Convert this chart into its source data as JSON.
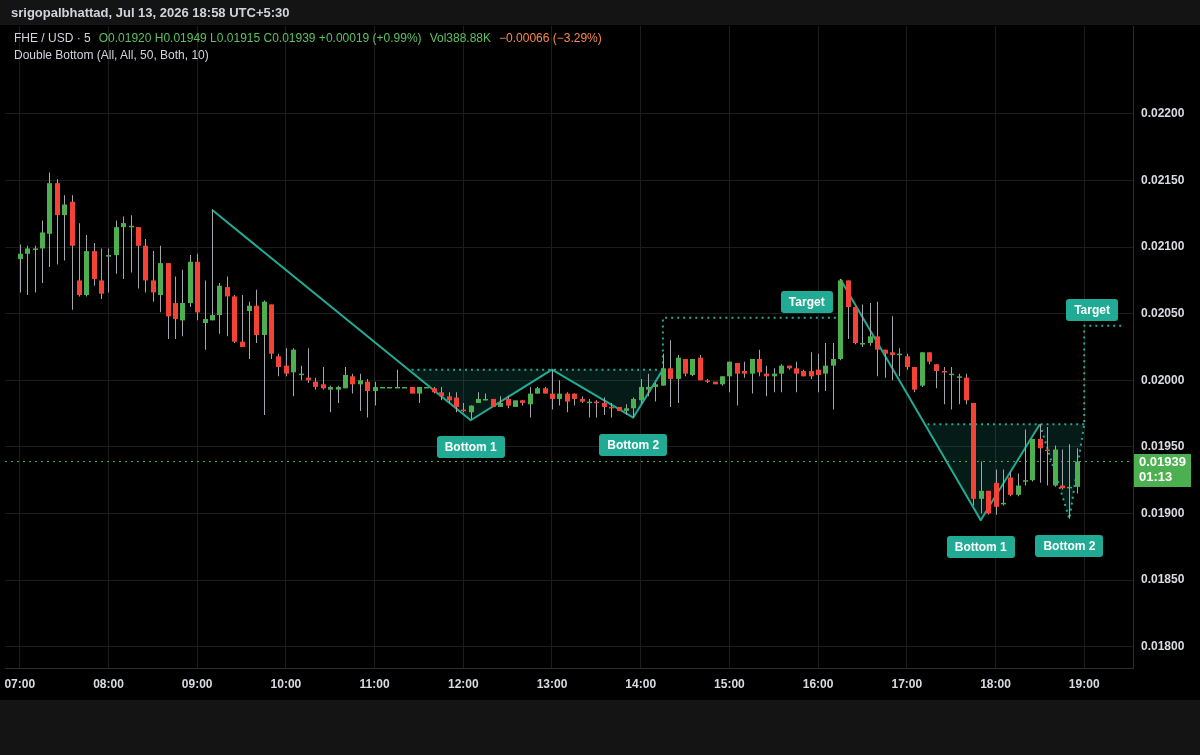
{
  "chart_data": {
    "type": "candlestick",
    "title": "FHE / USD · 5",
    "subtitle": "O0.01920 H0.01949 L0.01915 C0.01939 +0.00019 (+0.99%)",
    "annotations": [
      "Vol388.88K",
      "−0.00066 (−3.29%)",
      "Double Bottom (All, All, 50, Both, 10)",
      "srigopalbhattad, Jul 13, 2026 18:58 UTC+5:30",
      {
        "text": "Bottom 1",
        "x": "2026-07-13T12:05",
        "y": 0.0197
      },
      {
        "text": "Bottom 2",
        "x": "2026-07-13T13:55",
        "y": 0.01972
      },
      {
        "text": "Target",
        "x": "2026-07-13T16:12",
        "y": 0.02047
      },
      {
        "text": "Bottom 1",
        "x": "2026-07-13T17:50",
        "y": 0.01895
      },
      {
        "text": "Bottom 2",
        "x": "2026-07-13T18:50",
        "y": 0.01896
      },
      {
        "text": "Target",
        "x": "2026-07-13T19:25",
        "y": 0.02041
      }
    ],
    "x": [
      "2026-07-13T07:00",
      "2026-07-13T07:05",
      "2026-07-13T07:10",
      "2026-07-13T07:15",
      "2026-07-13T07:20",
      "2026-07-13T07:25",
      "2026-07-13T07:30",
      "2026-07-13T07:35",
      "2026-07-13T07:40",
      "2026-07-13T07:45",
      "2026-07-13T07:50",
      "2026-07-13T07:55",
      "2026-07-13T08:00",
      "2026-07-13T08:05",
      "2026-07-13T08:10",
      "2026-07-13T08:15",
      "2026-07-13T08:20",
      "2026-07-13T08:25",
      "2026-07-13T08:30",
      "2026-07-13T08:35",
      "2026-07-13T08:40",
      "2026-07-13T08:45",
      "2026-07-13T08:50",
      "2026-07-13T08:55",
      "2026-07-13T09:00",
      "2026-07-13T09:05",
      "2026-07-13T09:10",
      "2026-07-13T09:15",
      "2026-07-13T09:20",
      "2026-07-13T09:25",
      "2026-07-13T09:30",
      "2026-07-13T09:35",
      "2026-07-13T09:40",
      "2026-07-13T09:45",
      "2026-07-13T09:50",
      "2026-07-13T09:55",
      "2026-07-13T10:00",
      "2026-07-13T10:05",
      "2026-07-13T10:10",
      "2026-07-13T10:15",
      "2026-07-13T10:20",
      "2026-07-13T10:25",
      "2026-07-13T10:30",
      "2026-07-13T10:35",
      "2026-07-13T10:40",
      "2026-07-13T10:45",
      "2026-07-13T10:50",
      "2026-07-13T10:55",
      "2026-07-13T11:00",
      "2026-07-13T11:05",
      "2026-07-13T11:10",
      "2026-07-13T11:15",
      "2026-07-13T11:20",
      "2026-07-13T11:25",
      "2026-07-13T11:30",
      "2026-07-13T11:35",
      "2026-07-13T11:40",
      "2026-07-13T11:45",
      "2026-07-13T11:50",
      "2026-07-13T11:55",
      "2026-07-13T12:00",
      "2026-07-13T12:05",
      "2026-07-13T12:10",
      "2026-07-13T12:15",
      "2026-07-13T12:20",
      "2026-07-13T12:25",
      "2026-07-13T12:30",
      "2026-07-13T12:35",
      "2026-07-13T12:40",
      "2026-07-13T12:45",
      "2026-07-13T12:50",
      "2026-07-13T12:55",
      "2026-07-13T13:00",
      "2026-07-13T13:05",
      "2026-07-13T13:10",
      "2026-07-13T13:15",
      "2026-07-13T13:20",
      "2026-07-13T13:25",
      "2026-07-13T13:30",
      "2026-07-13T13:35",
      "2026-07-13T13:40",
      "2026-07-13T13:45",
      "2026-07-13T13:50",
      "2026-07-13T13:55",
      "2026-07-13T14:00",
      "2026-07-13T14:05",
      "2026-07-13T14:10",
      "2026-07-13T14:15",
      "2026-07-13T14:20",
      "2026-07-13T14:25",
      "2026-07-13T14:30",
      "2026-07-13T14:35",
      "2026-07-13T14:40",
      "2026-07-13T14:45",
      "2026-07-13T14:50",
      "2026-07-13T14:55",
      "2026-07-13T15:00",
      "2026-07-13T15:05",
      "2026-07-13T15:10",
      "2026-07-13T15:15",
      "2026-07-13T15:20",
      "2026-07-13T15:25",
      "2026-07-13T15:30",
      "2026-07-13T15:35",
      "2026-07-13T15:40",
      "2026-07-13T15:45",
      "2026-07-13T15:50",
      "2026-07-13T15:55",
      "2026-07-13T16:00",
      "2026-07-13T16:05",
      "2026-07-13T16:10",
      "2026-07-13T16:15",
      "2026-07-13T16:20",
      "2026-07-13T16:25",
      "2026-07-13T16:30",
      "2026-07-13T16:35",
      "2026-07-13T16:40",
      "2026-07-13T16:45",
      "2026-07-13T16:50",
      "2026-07-13T16:55",
      "2026-07-13T17:00",
      "2026-07-13T17:05",
      "2026-07-13T17:10",
      "2026-07-13T17:15",
      "2026-07-13T17:20",
      "2026-07-13T17:25",
      "2026-07-13T17:30",
      "2026-07-13T17:35",
      "2026-07-13T17:40",
      "2026-07-13T17:45",
      "2026-07-13T17:50",
      "2026-07-13T17:55",
      "2026-07-13T18:00",
      "2026-07-13T18:05",
      "2026-07-13T18:10",
      "2026-07-13T18:15",
      "2026-07-13T18:20",
      "2026-07-13T18:25",
      "2026-07-13T18:30",
      "2026-07-13T18:35",
      "2026-07-13T18:40",
      "2026-07-13T18:45",
      "2026-07-13T18:50",
      "2026-07-13T18:55"
    ],
    "ohlc": [
      [
        0.02091,
        0.02102,
        0.02066,
        0.02095
      ],
      [
        0.02095,
        0.02101,
        0.02064,
        0.02099
      ],
      [
        0.02098,
        0.02101,
        0.02066,
        0.02099
      ],
      [
        0.02099,
        0.0212,
        0.02073,
        0.02111
      ],
      [
        0.0211,
        0.02156,
        0.02085,
        0.02148
      ],
      [
        0.02148,
        0.02151,
        0.02087,
        0.02124
      ],
      [
        0.02124,
        0.02139,
        0.0209,
        0.02132
      ],
      [
        0.02134,
        0.02139,
        0.02053,
        0.02101
      ],
      [
        0.02075,
        0.02118,
        0.02063,
        0.02064
      ],
      [
        0.02064,
        0.02109,
        0.02063,
        0.02097
      ],
      [
        0.02097,
        0.02103,
        0.02071,
        0.02076
      ],
      [
        0.02075,
        0.02099,
        0.02061,
        0.02065
      ],
      [
        0.02094,
        0.02099,
        0.02066,
        0.02094
      ],
      [
        0.02094,
        0.0212,
        0.0208,
        0.02115
      ],
      [
        0.02115,
        0.02123,
        0.02076,
        0.02118
      ],
      [
        0.02116,
        0.02124,
        0.02081,
        0.02116
      ],
      [
        0.02115,
        0.02115,
        0.02069,
        0.02101
      ],
      [
        0.02101,
        0.02106,
        0.02066,
        0.02075
      ],
      [
        0.02075,
        0.02097,
        0.02059,
        0.02066
      ],
      [
        0.02064,
        0.02101,
        0.02051,
        0.02088
      ],
      [
        0.02088,
        0.02088,
        0.02031,
        0.02048
      ],
      [
        0.02058,
        0.02078,
        0.02031,
        0.02046
      ],
      [
        0.02045,
        0.02083,
        0.02033,
        0.02058
      ],
      [
        0.02058,
        0.02094,
        0.02055,
        0.02089
      ],
      [
        0.02089,
        0.02095,
        0.02045,
        0.02051
      ],
      [
        0.02043,
        0.02075,
        0.02023,
        0.02046
      ],
      [
        0.02045,
        0.02128,
        0.02045,
        0.02049
      ],
      [
        0.02049,
        0.02073,
        0.02035,
        0.02071
      ],
      [
        0.0207,
        0.02078,
        0.02033,
        0.02063
      ],
      [
        0.02063,
        0.02064,
        0.02028,
        0.02029
      ],
      [
        0.02029,
        0.02064,
        0.02025,
        0.02025
      ],
      [
        0.02052,
        0.02059,
        0.02016,
        0.02056
      ],
      [
        0.02056,
        0.02068,
        0.02028,
        0.02034
      ],
      [
        0.02034,
        0.0206,
        0.01974,
        0.02059
      ],
      [
        0.02057,
        0.02057,
        0.02016,
        0.0202
      ],
      [
        0.02018,
        0.0202,
        0.02003,
        0.0201
      ],
      [
        0.02011,
        0.02024,
        0.02003,
        0.02005
      ],
      [
        0.02006,
        0.02024,
        0.01988,
        0.02023
      ],
      [
        0.02005,
        0.02011,
        0.02,
        0.02005
      ],
      [
        0.02002,
        0.02024,
        0.01998,
        0.02
      ],
      [
        0.01999,
        0.02002,
        0.01993,
        0.01995
      ],
      [
        0.01997,
        0.0201,
        0.01993,
        0.01994
      ],
      [
        0.01993,
        0.01996,
        0.01976,
        0.01995
      ],
      [
        0.01993,
        0.01996,
        0.01983,
        0.01995
      ],
      [
        0.01994,
        0.0201,
        0.01994,
        0.02004
      ],
      [
        0.02003,
        0.02005,
        0.0199,
        0.01997
      ],
      [
        0.01997,
        0.02005,
        0.01977,
        0.02
      ],
      [
        0.01999,
        0.02001,
        0.01972,
        0.01992
      ],
      [
        0.01992,
        0.01999,
        0.01981,
        0.01995
      ],
      [
        0.01995,
        0.01995,
        0.01995,
        0.01995
      ],
      [
        0.01995,
        0.01995,
        0.01995,
        0.01995
      ],
      [
        0.01995,
        0.02008,
        0.01995,
        0.01995
      ],
      [
        0.01995,
        0.01995,
        0.01995,
        0.01995
      ],
      [
        0.01995,
        0.01995,
        0.0199,
        0.0199
      ],
      [
        0.0199,
        0.01995,
        0.01983,
        0.01995
      ],
      [
        0.01995,
        0.01995,
        0.01995,
        0.01995
      ],
      [
        0.01994,
        0.01995,
        0.0199,
        0.01991
      ],
      [
        0.01991,
        0.01995,
        0.01985,
        0.01988
      ],
      [
        0.01988,
        0.01991,
        0.01983,
        0.01985
      ],
      [
        0.01987,
        0.01991,
        0.01976,
        0.0198
      ],
      [
        0.01978,
        0.01983,
        0.01976,
        0.01977
      ],
      [
        0.01976,
        0.01981,
        0.01971,
        0.01981
      ],
      [
        0.01983,
        0.01991,
        0.01983,
        0.01986
      ],
      [
        0.01986,
        0.0199,
        0.01985,
        0.01986
      ],
      [
        0.01986,
        0.01986,
        0.0198,
        0.0198
      ],
      [
        0.0198,
        0.01988,
        0.0198,
        0.01983
      ],
      [
        0.01986,
        0.01988,
        0.01979,
        0.01981
      ],
      [
        0.0198,
        0.01985,
        0.0198,
        0.01985
      ],
      [
        0.01985,
        0.01985,
        0.01981,
        0.01983
      ],
      [
        0.01982,
        0.01995,
        0.01972,
        0.0199
      ],
      [
        0.0199,
        0.01995,
        0.0199,
        0.01994
      ],
      [
        0.01994,
        0.01995,
        0.0199,
        0.0199
      ],
      [
        0.0199,
        0.02008,
        0.01978,
        0.01986
      ],
      [
        0.01986,
        0.02,
        0.01981,
        0.0199
      ],
      [
        0.0199,
        0.01991,
        0.01976,
        0.01984
      ],
      [
        0.0199,
        0.0199,
        0.01981,
        0.01986
      ],
      [
        0.01986,
        0.01988,
        0.01983,
        0.01984
      ],
      [
        0.01984,
        0.01986,
        0.01972,
        0.01984
      ],
      [
        0.01984,
        0.01985,
        0.01972,
        0.01984
      ],
      [
        0.01983,
        0.01987,
        0.01974,
        0.0198
      ],
      [
        0.0198,
        0.01983,
        0.01972,
        0.01979
      ],
      [
        0.0198,
        0.0198,
        0.01977,
        0.01977
      ],
      [
        0.01977,
        0.01982,
        0.01974,
        0.01979
      ],
      [
        0.01979,
        0.01987,
        0.01972,
        0.01986
      ],
      [
        0.01985,
        0.02001,
        0.01983,
        0.01995
      ],
      [
        0.01993,
        0.02005,
        0.01988,
        0.01995
      ],
      [
        0.01995,
        0.01998,
        0.01984,
        0.01997
      ],
      [
        0.01996,
        0.0202,
        0.01996,
        0.02009
      ],
      [
        0.02009,
        0.0203,
        0.0198,
        0.02001
      ],
      [
        0.02001,
        0.02019,
        0.01983,
        0.02017
      ],
      [
        0.02016,
        0.02016,
        0.02003,
        0.02005
      ],
      [
        0.02004,
        0.02016,
        0.02003,
        0.02016
      ],
      [
        0.02017,
        0.02019,
        0.02,
        0.02
      ],
      [
        0.02,
        0.02001,
        0.01998,
        0.02
      ],
      [
        0.01999,
        0.01999,
        0.01997,
        0.01997
      ],
      [
        0.01997,
        0.02003,
        0.01996,
        0.02003
      ],
      [
        0.02003,
        0.02014,
        0.01991,
        0.02014
      ],
      [
        0.02013,
        0.02013,
        0.01981,
        0.02005
      ],
      [
        0.02007,
        0.02014,
        0.02002,
        0.02005
      ],
      [
        0.02005,
        0.02016,
        0.0199,
        0.02016
      ],
      [
        0.02016,
        0.02023,
        0.02003,
        0.02006
      ],
      [
        0.02005,
        0.02011,
        0.01988,
        0.02003
      ],
      [
        0.02003,
        0.02009,
        0.01991,
        0.02005
      ],
      [
        0.02005,
        0.02012,
        0.01991,
        0.02011
      ],
      [
        0.02011,
        0.02011,
        0.02008,
        0.02009
      ],
      [
        0.02009,
        0.02014,
        0.01991,
        0.02005
      ],
      [
        0.02007,
        0.02008,
        0.02003,
        0.02003
      ],
      [
        0.02007,
        0.02021,
        0.02001,
        0.02003
      ],
      [
        0.02008,
        0.0202,
        0.01991,
        0.02004
      ],
      [
        0.02005,
        0.02028,
        0.01992,
        0.02011
      ],
      [
        0.02011,
        0.02028,
        0.01978,
        0.02016
      ],
      [
        0.02016,
        0.02076,
        0.02015,
        0.02075
      ],
      [
        0.02075,
        0.02075,
        0.02031,
        0.02055
      ],
      [
        0.02055,
        0.02055,
        0.02027,
        0.02028
      ],
      [
        0.02027,
        0.02057,
        0.02025,
        0.02028
      ],
      [
        0.02028,
        0.02058,
        0.02026,
        0.02033
      ],
      [
        0.02033,
        0.02059,
        0.02003,
        0.02023
      ],
      [
        0.02023,
        0.02023,
        0.02002,
        0.0202
      ],
      [
        0.02021,
        0.02048,
        0.02,
        0.02019
      ],
      [
        0.02019,
        0.02024,
        0.02003,
        0.0202
      ],
      [
        0.02018,
        0.0202,
        0.02008,
        0.0201
      ],
      [
        0.0201,
        0.0201,
        0.01991,
        0.01993
      ],
      [
        0.01996,
        0.02021,
        0.01995,
        0.02021
      ],
      [
        0.02021,
        0.02021,
        0.02012,
        0.02014
      ],
      [
        0.02012,
        0.02012,
        0.01994,
        0.02007
      ],
      [
        0.02007,
        0.0201,
        0.01982,
        0.02007
      ],
      [
        0.02005,
        0.0201,
        0.01978,
        0.02005
      ],
      [
        0.02003,
        0.02005,
        0.01982,
        0.02003
      ],
      [
        0.02002,
        0.02005,
        0.01982,
        0.01985
      ],
      [
        0.01983,
        0.01983,
        0.01906,
        0.01911
      ],
      [
        0.01911,
        0.01939,
        0.019,
        0.01917
      ],
      [
        0.01917,
        0.01917,
        0.01899,
        0.019
      ],
      [
        0.01923,
        0.01933,
        0.01899,
        0.01905
      ],
      [
        0.01907,
        0.01933,
        0.01906,
        0.01908
      ],
      [
        0.01927,
        0.01931,
        0.01913,
        0.01914
      ],
      [
        0.01914,
        0.0193,
        0.01913,
        0.01921
      ],
      [
        0.01924,
        0.01963,
        0.01921,
        0.01925
      ],
      [
        0.01925,
        0.01956,
        0.01924,
        0.01956
      ],
      [
        0.01956,
        0.01967,
        0.01923,
        0.01949
      ],
      [
        0.01948,
        0.01965,
        0.01921,
        0.01947
      ],
      [
        0.01921,
        0.01951,
        0.0192,
        0.01948
      ],
      [
        0.01921,
        0.01948,
        0.01918,
        0.01919
      ],
      [
        0.01919,
        0.01952,
        0.01896,
        0.0192
      ],
      [
        0.0192,
        0.01949,
        0.01915,
        0.01939
      ]
    ],
    "colors": [
      "#4caf50",
      "#4caf50",
      "#4caf50",
      "#4caf50",
      "#4caf50",
      "#f44336",
      "#4caf50",
      "#f44336",
      "#f44336",
      "#4caf50",
      "#f44336",
      "#f44336",
      "#4caf50",
      "#4caf50",
      "#4caf50",
      "#4caf50",
      "#f44336",
      "#f44336",
      "#f44336",
      "#4caf50",
      "#f44336",
      "#f44336",
      "#4caf50",
      "#4caf50",
      "#f44336",
      "#4caf50",
      "#4caf50",
      "#4caf50",
      "#f44336",
      "#f44336",
      "#f44336",
      "#4caf50",
      "#f44336",
      "#4caf50",
      "#f44336",
      "#f44336",
      "#f44336",
      "#4caf50",
      "#4caf50",
      "#f44336",
      "#f44336",
      "#f44336",
      "#4caf50",
      "#4caf50",
      "#4caf50",
      "#f44336",
      "#4caf50",
      "#f44336",
      "#4caf50",
      "#4caf50",
      "#4caf50",
      "#4caf50",
      "#4caf50",
      "#f44336",
      "#4caf50",
      "#4caf50",
      "#f44336",
      "#f44336",
      "#f44336",
      "#f44336",
      "#f44336",
      "#4caf50",
      "#4caf50",
      "#4caf50",
      "#f44336",
      "#4caf50",
      "#f44336",
      "#4caf50",
      "#f44336",
      "#4caf50",
      "#4caf50",
      "#f44336",
      "#f44336",
      "#4caf50",
      "#f44336",
      "#f44336",
      "#f44336",
      "#4caf50",
      "#f44336",
      "#f44336",
      "#f44336",
      "#f44336",
      "#4caf50",
      "#4caf50",
      "#4caf50",
      "#4caf50",
      "#4caf50",
      "#4caf50",
      "#f44336",
      "#4caf50",
      "#f44336",
      "#4caf50",
      "#f44336",
      "#f44336",
      "#f44336",
      "#4caf50",
      "#4caf50",
      "#f44336",
      "#f44336",
      "#4caf50",
      "#f44336",
      "#f44336",
      "#4caf50",
      "#4caf50",
      "#f44336",
      "#f44336",
      "#f44336",
      "#f44336",
      "#f44336",
      "#4caf50",
      "#4caf50",
      "#4caf50",
      "#f44336",
      "#f44336",
      "#4caf50",
      "#4caf50",
      "#f44336",
      "#f44336",
      "#f44336",
      "#4caf50",
      "#f44336",
      "#f44336",
      "#4caf50",
      "#f44336",
      "#f44336",
      "#f44336",
      "#4caf50",
      "#4caf50",
      "#f44336",
      "#f44336",
      "#4caf50",
      "#f44336",
      "#f44336",
      "#4caf50",
      "#f44336",
      "#4caf50",
      "#4caf50",
      "#4caf50",
      "#f44336",
      "#f44336",
      "#4caf50",
      "#f44336",
      "#4caf50",
      "#4caf50"
    ],
    "series": [
      {
        "type": "line",
        "color": "#22ab94",
        "line_style": "solid",
        "x": [
          "2026-07-13T09:10",
          "2026-07-13T12:05",
          "2026-07-13T13:00",
          "2026-07-13T13:55",
          "2026-07-13T14:15"
        ],
        "values": [
          0.02128,
          0.0197,
          0.02008,
          0.01972,
          0.02008
        ]
      },
      {
        "type": "line",
        "color": "#22ab94",
        "line_style": "dotted",
        "x": [
          "2026-07-13T11:25",
          "2026-07-13T12:05",
          "2026-07-13T13:00",
          "2026-07-13T13:55",
          "2026-07-13T14:15"
        ],
        "values": [
          0.02008,
          0.02008,
          0.02008,
          0.02008,
          0.02008
        ],
        "lower": [
          0.02006,
          0.0197,
          0.02008,
          0.01972,
          0.02008
        ],
        "upper": [
          0.02008,
          0.02008,
          0.02008,
          0.02008,
          0.02008
        ]
      },
      {
        "type": "line",
        "color": "#22ab94",
        "line_style": "dotted",
        "x": [
          "2026-07-13T14:15",
          "2026-07-13T14:15",
          "2026-07-13T16:12"
        ],
        "values": [
          0.02008,
          0.02047,
          0.02047
        ]
      },
      {
        "type": "line",
        "color": "#22ab94",
        "line_style": "solid",
        "x": [
          "2026-07-13T16:15",
          "2026-07-13T17:50",
          "2026-07-13T18:30"
        ],
        "values": [
          0.02076,
          0.01895,
          0.01967
        ]
      },
      {
        "type": "line",
        "color": "#22ab94",
        "line_style": "dotted",
        "x": [
          "2026-07-13T17:14",
          "2026-07-13T17:50",
          "2026-07-13T18:30",
          "2026-07-13T18:50",
          "2026-07-13T19:00"
        ],
        "values": [
          0.01967,
          0.01967,
          0.01967,
          0.01967,
          0.01967
        ],
        "lower": [
          0.01964,
          0.01895,
          0.01967,
          0.01896,
          0.01967
        ],
        "upper": [
          0.01967,
          0.01967,
          0.01967,
          0.01967,
          0.01967
        ]
      },
      {
        "type": "line",
        "color": "#22ab94",
        "line_style": "dotted",
        "x": [
          "2026-07-13T18:30",
          "2026-07-13T18:50",
          "2026-07-13T19:00",
          "2026-07-13T19:00",
          "2026-07-13T19:25"
        ],
        "values": [
          0.01967,
          0.01896,
          0.01967,
          0.02041,
          0.02041
        ]
      }
    ],
    "ref_lines": [
      {
        "axis": "y",
        "value": 0.01939,
        "label": "0.01939\n01:13",
        "color": "#4caf50",
        "line_style": "dotted"
      }
    ],
    "xlim": [
      "2026-07-13T06:50",
      "2026-07-13T19:33"
    ],
    "xticks": [
      {
        "value": "2026-07-13T07:00",
        "label": "07:00"
      },
      {
        "value": "2026-07-13T08:00",
        "label": "08:00"
      },
      {
        "value": "2026-07-13T09:00",
        "label": "09:00"
      },
      {
        "value": "2026-07-13T10:00",
        "label": "10:00"
      },
      {
        "value": "2026-07-13T11:00",
        "label": "11:00"
      },
      {
        "value": "2026-07-13T12:00",
        "label": "12:00"
      },
      {
        "value": "2026-07-13T13:00",
        "label": "13:00"
      },
      {
        "value": "2026-07-13T14:00",
        "label": "14:00"
      },
      {
        "value": "2026-07-13T15:00",
        "label": "15:00"
      },
      {
        "value": "2026-07-13T16:00",
        "label": "16:00"
      },
      {
        "value": "2026-07-13T17:00",
        "label": "17:00"
      },
      {
        "value": "2026-07-13T18:00",
        "label": "18:00"
      },
      {
        "value": "2026-07-13T19:00",
        "label": "19:00"
      }
    ],
    "ylim": [
      0.01784,
      0.02266
    ],
    "yticks": [
      {
        "value": 0.018,
        "label": "0.01800"
      },
      {
        "value": 0.0185,
        "label": "0.01850"
      },
      {
        "value": 0.019,
        "label": "0.01900"
      },
      {
        "value": 0.0195,
        "label": "0.01950"
      },
      {
        "value": 0.02,
        "label": "0.02000"
      },
      {
        "value": 0.0205,
        "label": "0.02050"
      },
      {
        "value": 0.021,
        "label": "0.02100"
      },
      {
        "value": 0.0215,
        "label": "0.02150"
      },
      {
        "value": 0.022,
        "label": "0.02200"
      }
    ],
    "grid": true,
    "marker": "none"
  }
}
